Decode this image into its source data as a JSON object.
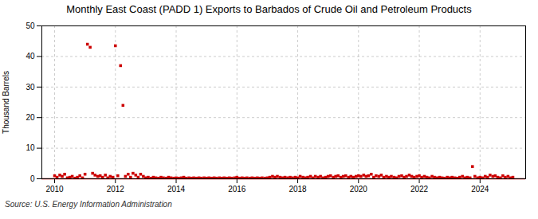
{
  "chart_data": {
    "type": "scatter",
    "title": "Monthly East Coast (PADD 1) Exports to Barbados of Crude Oil and Petroleum Products",
    "ylabel": "Thousand Barrels",
    "source": "Source: U.S. Energy Information Administration",
    "color": "#cc0000",
    "marker": "square",
    "grid": true,
    "xlim": [
      2009.58,
      2025.5
    ],
    "xticks": [
      2010,
      2012,
      2014,
      2016,
      2018,
      2020,
      2022,
      2024
    ],
    "ylim": [
      0,
      50
    ],
    "yticks": [
      0,
      10,
      20,
      30,
      40,
      50
    ],
    "x": [
      2010.0,
      2010.08,
      2010.17,
      2010.25,
      2010.33,
      2010.42,
      2010.5,
      2010.58,
      2010.67,
      2010.75,
      2010.83,
      2010.92,
      2011.0,
      2011.08,
      2011.17,
      2011.25,
      2011.33,
      2011.42,
      2011.5,
      2011.58,
      2011.67,
      2011.75,
      2011.83,
      2011.92,
      2012.0,
      2012.08,
      2012.17,
      2012.25,
      2012.33,
      2012.42,
      2012.5,
      2012.58,
      2012.67,
      2012.75,
      2012.83,
      2012.92,
      2013.0,
      2013.08,
      2013.17,
      2013.25,
      2013.33,
      2013.42,
      2013.5,
      2013.58,
      2013.67,
      2013.75,
      2013.83,
      2013.92,
      2014.0,
      2014.08,
      2014.17,
      2014.25,
      2014.33,
      2014.42,
      2014.5,
      2014.58,
      2014.67,
      2014.75,
      2014.83,
      2014.92,
      2015.0,
      2015.08,
      2015.17,
      2015.25,
      2015.33,
      2015.42,
      2015.5,
      2015.58,
      2015.67,
      2015.75,
      2015.83,
      2015.92,
      2016.0,
      2016.08,
      2016.17,
      2016.25,
      2016.33,
      2016.42,
      2016.5,
      2016.58,
      2016.67,
      2016.75,
      2016.83,
      2016.92,
      2017.0,
      2017.08,
      2017.17,
      2017.25,
      2017.33,
      2017.42,
      2017.5,
      2017.58,
      2017.67,
      2017.75,
      2017.83,
      2017.92,
      2018.0,
      2018.08,
      2018.17,
      2018.25,
      2018.33,
      2018.42,
      2018.5,
      2018.58,
      2018.67,
      2018.75,
      2018.83,
      2018.92,
      2019.0,
      2019.08,
      2019.17,
      2019.25,
      2019.33,
      2019.42,
      2019.5,
      2019.58,
      2019.67,
      2019.75,
      2019.83,
      2019.92,
      2020.0,
      2020.08,
      2020.17,
      2020.25,
      2020.33,
      2020.42,
      2020.5,
      2020.58,
      2020.67,
      2020.75,
      2020.83,
      2020.92,
      2021.0,
      2021.08,
      2021.17,
      2021.25,
      2021.33,
      2021.42,
      2021.5,
      2021.58,
      2021.67,
      2021.75,
      2021.83,
      2021.92,
      2022.0,
      2022.08,
      2022.17,
      2022.25,
      2022.33,
      2022.42,
      2022.5,
      2022.58,
      2022.67,
      2022.75,
      2022.83,
      2022.92,
      2023.0,
      2023.08,
      2023.17,
      2023.25,
      2023.33,
      2023.42,
      2023.5,
      2023.58,
      2023.67,
      2023.75,
      2023.83,
      2023.92,
      2024.0,
      2024.08,
      2024.17,
      2024.25,
      2024.33,
      2024.42,
      2024.5,
      2024.58,
      2024.67,
      2024.75,
      2024.83,
      2024.92,
      2025.0,
      2025.08
    ],
    "values": [
      1.0,
      0.5,
      1.2,
      0.8,
      1.5,
      0.3,
      0.5,
      0.8,
      0.2,
      0.5,
      1.0,
      0.3,
      1.5,
      44.0,
      43.0,
      1.8,
      1.2,
      0.8,
      1.0,
      0.5,
      1.2,
      0.3,
      0.8,
      0.5,
      43.5,
      1.0,
      37.0,
      24.0,
      0.8,
      1.5,
      0.5,
      1.8,
      1.2,
      0.5,
      1.5,
      0.8,
      0.3,
      0.5,
      0.2,
      0.5,
      0.3,
      0.2,
      0.5,
      0.3,
      0.2,
      0.5,
      0.3,
      0.2,
      0.3,
      0.2,
      0.3,
      0.5,
      0.2,
      0.3,
      0.2,
      0.3,
      0.2,
      0.3,
      0.2,
      0.3,
      0.2,
      0.3,
      0.2,
      0.3,
      0.2,
      0.3,
      0.2,
      0.3,
      0.2,
      0.3,
      0.2,
      0.3,
      0.5,
      0.2,
      0.3,
      0.2,
      0.3,
      0.2,
      0.3,
      0.2,
      0.3,
      0.2,
      0.3,
      0.2,
      0.3,
      0.5,
      0.8,
      0.5,
      0.8,
      0.5,
      0.3,
      0.5,
      0.3,
      0.5,
      0.3,
      0.5,
      0.3,
      0.8,
      0.5,
      0.3,
      0.5,
      0.8,
      0.3,
      0.8,
      0.5,
      0.8,
      0.3,
      0.5,
      0.8,
      1.0,
      0.5,
      0.8,
      1.0,
      0.5,
      0.8,
      1.0,
      0.5,
      0.8,
      0.5,
      0.8,
      1.0,
      0.8,
      1.2,
      0.8,
      1.0,
      1.5,
      0.5,
      1.0,
      0.8,
      1.2,
      0.5,
      0.8,
      0.5,
      0.8,
      0.5,
      0.3,
      0.8,
      1.0,
      0.5,
      0.8,
      1.2,
      0.8,
      0.5,
      0.8,
      1.0,
      0.5,
      0.8,
      0.5,
      0.3,
      0.8,
      0.5,
      0.3,
      0.5,
      0.3,
      0.2,
      0.5,
      0.3,
      0.5,
      0.3,
      0.2,
      0.5,
      0.8,
      0.3,
      0.5,
      0.3,
      4.0,
      0.8,
      0.3,
      0.5,
      0.3,
      0.8,
      0.5,
      1.2,
      0.8,
      1.0,
      0.5,
      0.3,
      1.0,
      0.5,
      0.8,
      0.3,
      0.5
    ]
  }
}
